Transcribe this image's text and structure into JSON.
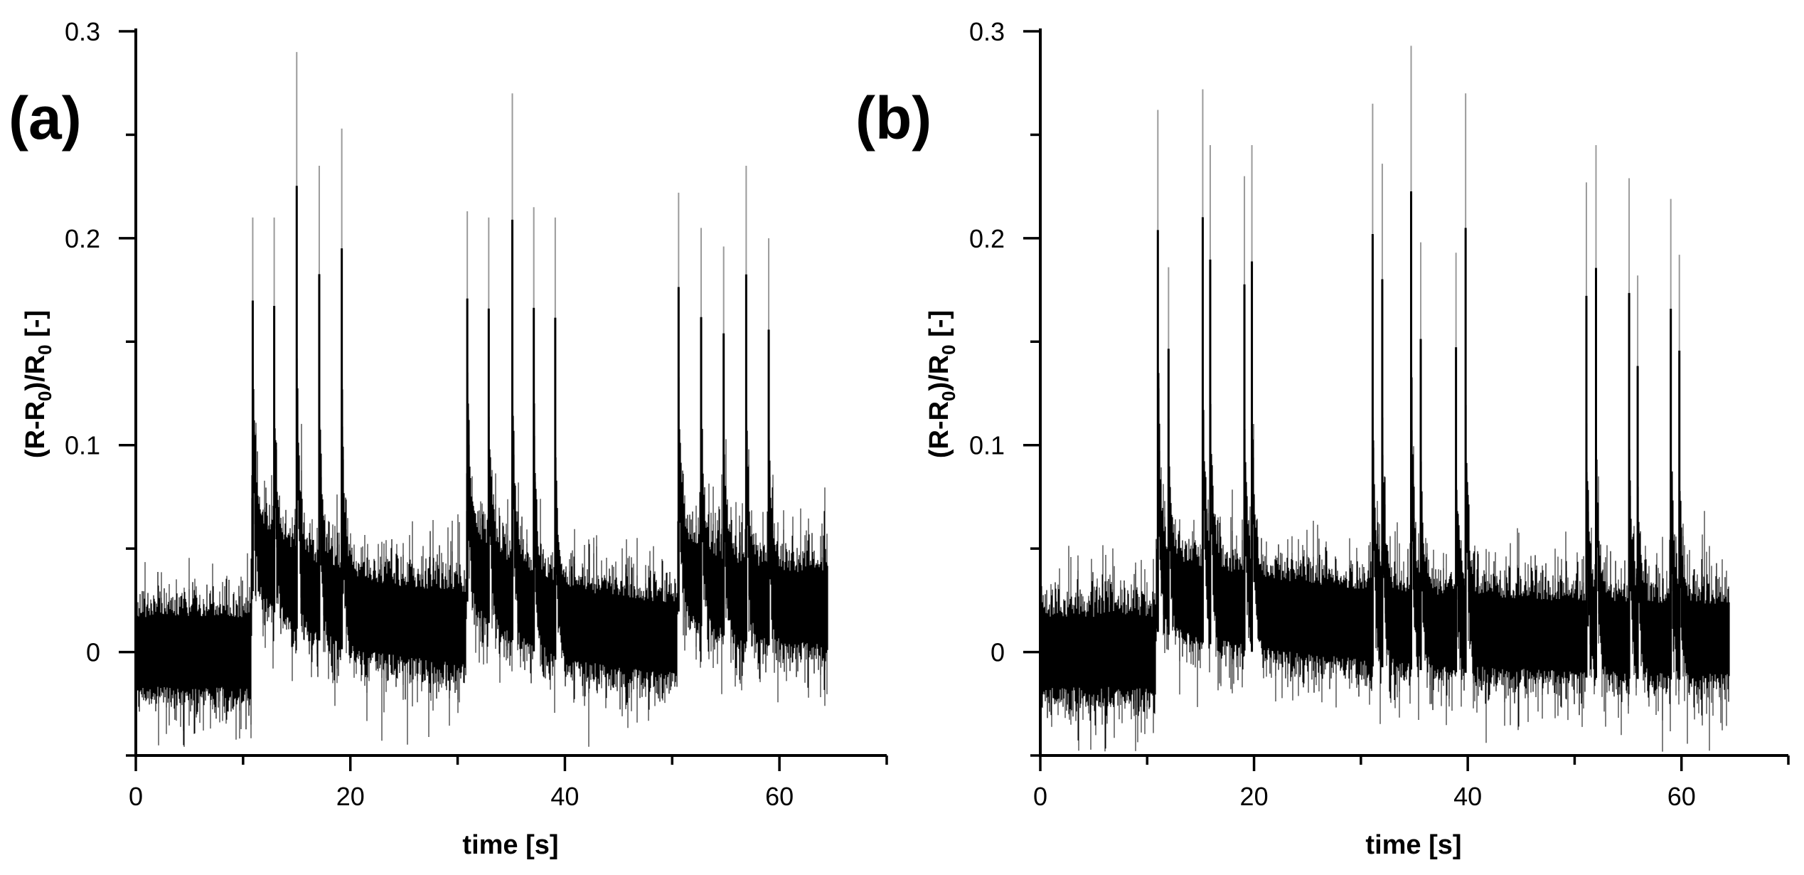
{
  "chart_data": [
    {
      "type": "line",
      "panel_label": "(a)",
      "xlabel": "time [s]",
      "ylabel_main": "(R-R",
      "ylabel_sub1": "0",
      "ylabel_mid": ")/R",
      "ylabel_sub2": "0",
      "ylabel_tail": " [-]",
      "xlim": [
        0,
        70
      ],
      "ylim": [
        -0.05,
        0.3
      ],
      "x_ticks": [
        0,
        20,
        40,
        60
      ],
      "x_tick_labels": [
        "0",
        "20",
        "40",
        "60"
      ],
      "y_ticks": [
        0,
        0.1,
        0.2,
        0.3
      ],
      "y_tick_labels": [
        "0",
        "0.1",
        "0.2",
        "0.3"
      ],
      "grid": false,
      "signal_range_s": [
        0,
        64.5
      ],
      "segments": [
        {
          "start": 0,
          "end": 10.8,
          "baseline": 0.0
        },
        {
          "start": 10.8,
          "end": 30.8,
          "baseline_start": 0.05,
          "baseline_end": 0.01
        },
        {
          "start": 30.8,
          "end": 50.5,
          "baseline_start": 0.045,
          "baseline_end": 0.005
        },
        {
          "start": 50.5,
          "end": 64.5,
          "baseline_start": 0.04,
          "baseline_end": 0.02
        }
      ],
      "spikes": [
        {
          "x": 10.9,
          "y": 0.21
        },
        {
          "x": 12.9,
          "y": 0.21
        },
        {
          "x": 15.0,
          "y": 0.29
        },
        {
          "x": 17.1,
          "y": 0.235
        },
        {
          "x": 19.2,
          "y": 0.253
        },
        {
          "x": 30.9,
          "y": 0.213
        },
        {
          "x": 32.9,
          "y": 0.21
        },
        {
          "x": 35.1,
          "y": 0.27
        },
        {
          "x": 37.1,
          "y": 0.215
        },
        {
          "x": 39.1,
          "y": 0.21
        },
        {
          "x": 50.6,
          "y": 0.222
        },
        {
          "x": 52.7,
          "y": 0.205
        },
        {
          "x": 54.8,
          "y": 0.196
        },
        {
          "x": 56.9,
          "y": 0.235
        },
        {
          "x": 59.0,
          "y": 0.2
        }
      ]
    },
    {
      "type": "line",
      "panel_label": "(b)",
      "xlabel": "time [s]",
      "ylabel_main": "(R-R",
      "ylabel_sub1": "0",
      "ylabel_mid": ")/R",
      "ylabel_sub2": "0",
      "ylabel_tail": " [-]",
      "xlim": [
        0,
        70
      ],
      "ylim": [
        -0.05,
        0.3
      ],
      "x_ticks": [
        0,
        20,
        40,
        60
      ],
      "x_tick_labels": [
        "0",
        "20",
        "40",
        "60"
      ],
      "y_ticks": [
        0,
        0.1,
        0.2,
        0.3
      ],
      "y_tick_labels": [
        "0",
        "0.1",
        "0.2",
        "0.3"
      ],
      "grid": false,
      "signal_range_s": [
        0,
        64.5
      ],
      "segments": [
        {
          "start": 0,
          "end": 10.8,
          "baseline": 0.0
        },
        {
          "start": 10.8,
          "end": 64.5,
          "baseline_start": 0.03,
          "baseline_end": 0.005
        }
      ],
      "spikes": [
        {
          "x": 11.0,
          "y": 0.262
        },
        {
          "x": 12.0,
          "y": 0.186
        },
        {
          "x": 15.2,
          "y": 0.272
        },
        {
          "x": 15.9,
          "y": 0.245
        },
        {
          "x": 19.1,
          "y": 0.23
        },
        {
          "x": 19.8,
          "y": 0.245
        },
        {
          "x": 31.1,
          "y": 0.265
        },
        {
          "x": 32.0,
          "y": 0.236
        },
        {
          "x": 34.7,
          "y": 0.293
        },
        {
          "x": 35.6,
          "y": 0.198
        },
        {
          "x": 38.9,
          "y": 0.193
        },
        {
          "x": 39.8,
          "y": 0.27
        },
        {
          "x": 51.1,
          "y": 0.227
        },
        {
          "x": 52.0,
          "y": 0.245
        },
        {
          "x": 55.1,
          "y": 0.229
        },
        {
          "x": 55.9,
          "y": 0.182
        },
        {
          "x": 59.0,
          "y": 0.219
        },
        {
          "x": 59.8,
          "y": 0.192
        }
      ]
    }
  ]
}
